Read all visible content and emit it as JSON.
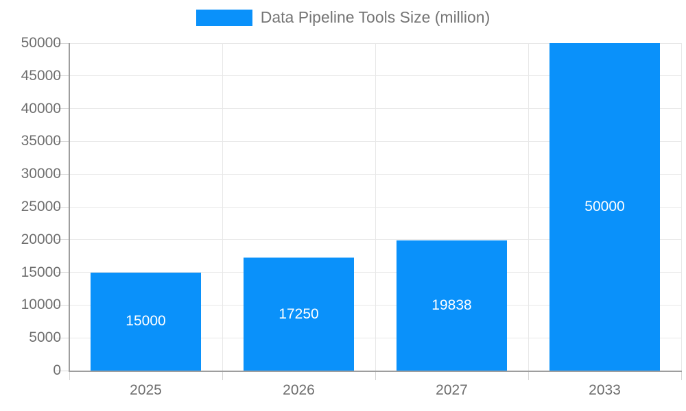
{
  "legend": {
    "label": "Data Pipeline Tools Size (million)"
  },
  "colors": {
    "bar": "#0A91FA",
    "grid": "#E8E8E8",
    "tick": "#D6D6D6",
    "axis": "#9E9E9E",
    "tick_text": "#6E6E6E",
    "legend_text": "#757575",
    "bar_label": "#FFFFFF"
  },
  "chart_data": {
    "type": "bar",
    "categories": [
      "2025",
      "2026",
      "2027",
      "2033"
    ],
    "values": [
      15000,
      17250,
      19838,
      50000
    ],
    "bar_labels": [
      "15000",
      "17250",
      "19838",
      "50000"
    ],
    "title": "Data Pipeline Tools Size (million)",
    "xlabel": "",
    "ylabel": "",
    "ylim": [
      0,
      50000
    ],
    "ytick_step": 5000,
    "ytick_labels": [
      "0",
      "5000",
      "10000",
      "15000",
      "20000",
      "25000",
      "30000",
      "35000",
      "40000",
      "45000",
      "50000"
    ],
    "grid": true,
    "legend_position": "top",
    "bar_color": "#0A91FA",
    "value_label_position": "center-inside"
  }
}
